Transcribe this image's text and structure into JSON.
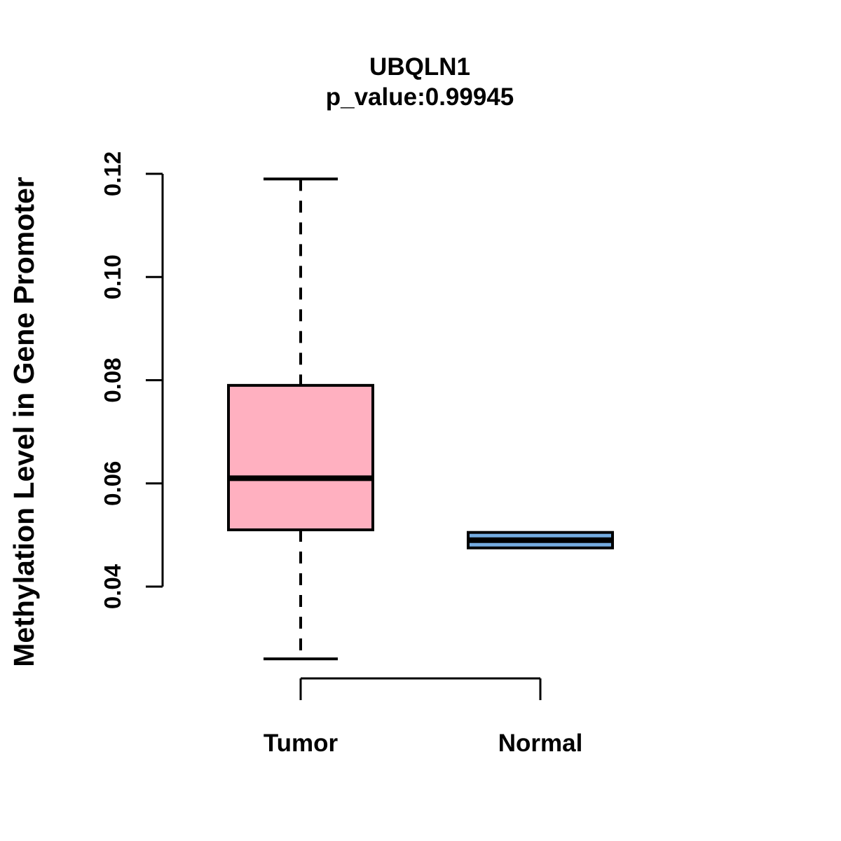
{
  "chart_data": {
    "type": "boxplot",
    "title": "UBQLN1",
    "subtitle": "p_value:0.99945",
    "p_value": "0.99945",
    "ylabel": "Methylation Level in Gene Promoter",
    "xlabel": "",
    "ylim": [
      0.04,
      0.12
    ],
    "yticks": [
      "0.04",
      "0.06",
      "0.08",
      "0.10",
      "0.12"
    ],
    "grid": "off",
    "legend": "none",
    "categories": [
      "Tumor",
      "Normal"
    ],
    "series": [
      {
        "name": "Tumor",
        "fill": "#FFB0C0",
        "whisker_low": 0.026,
        "q1": 0.051,
        "median": 0.061,
        "q3": 0.079,
        "whisker_high": 0.119,
        "whiskers_visible": true
      },
      {
        "name": "Normal",
        "fill": "#74ABE0",
        "whisker_low": 0.0475,
        "q1": 0.0475,
        "median": 0.049,
        "q3": 0.0505,
        "whisker_high": 0.0505,
        "whiskers_visible": false
      }
    ],
    "colors": {
      "box_border": "#000000",
      "tumor_fill": "#FFB0C0",
      "normal_fill": "#74ABE0",
      "text": "#000000",
      "background": "#FFFFFF"
    }
  }
}
